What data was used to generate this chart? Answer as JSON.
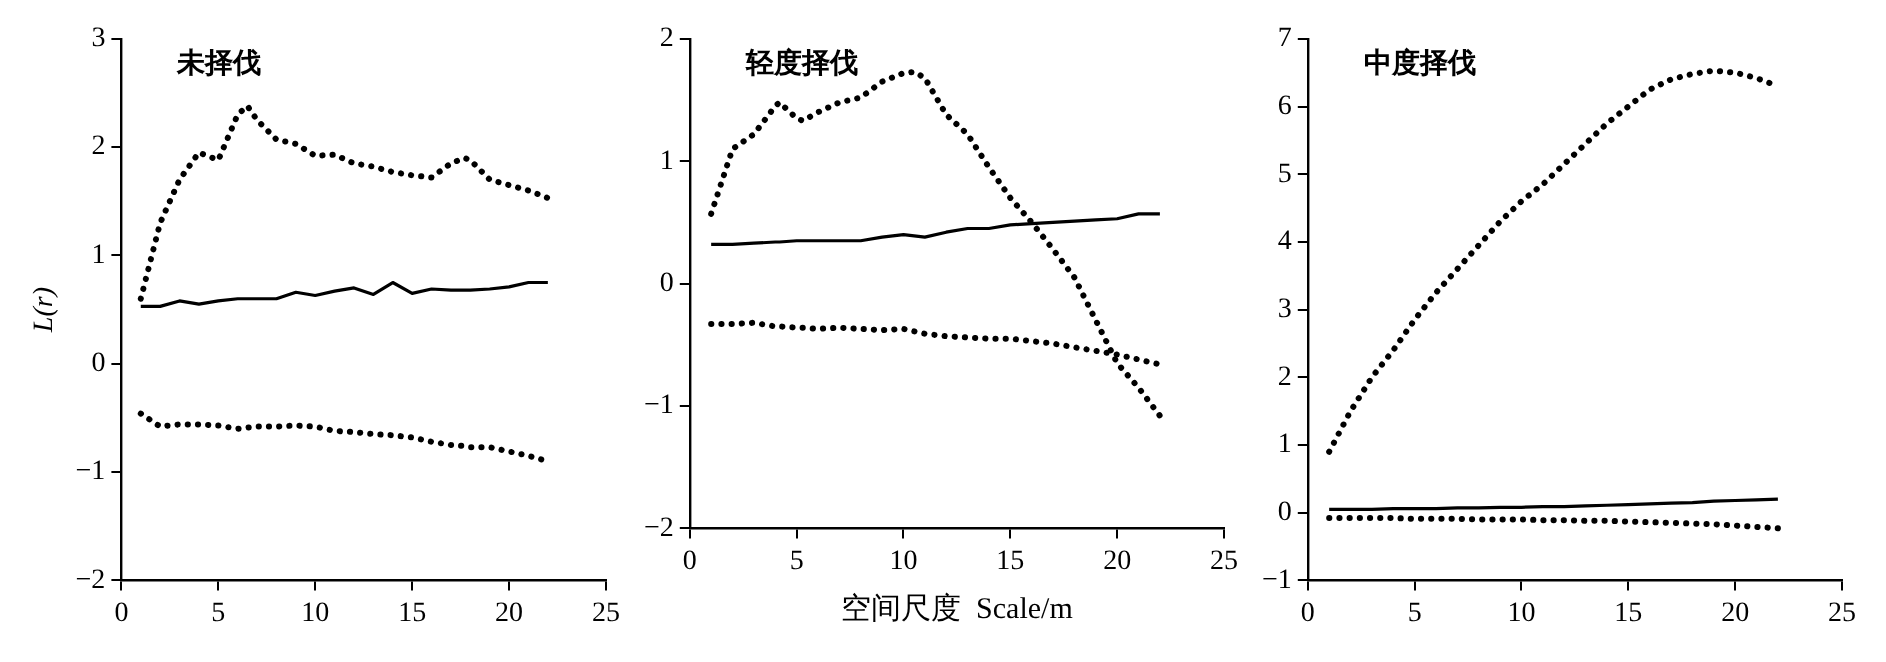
{
  "chart_data": [
    {
      "type": "line",
      "title": "未择伐",
      "ylabel": "L(r)",
      "x": [
        1,
        2,
        3,
        4,
        5,
        6,
        6.5,
        7,
        8,
        9,
        10,
        11,
        12,
        13,
        14,
        15,
        16,
        17,
        17.7,
        18,
        19,
        20,
        21,
        22
      ],
      "xlim": [
        0,
        25
      ],
      "xticks": [
        0,
        5,
        10,
        15,
        20,
        25
      ],
      "ylim": [
        -2,
        3
      ],
      "yticks": [
        -2,
        -1,
        0,
        1,
        2,
        3
      ],
      "grid": false,
      "legend": false,
      "marker": "none",
      "series": [
        {
          "color": "#000000",
          "line_style": "dotted",
          "values": [
            0.6,
            1.3,
            1.7,
            1.95,
            1.88,
            2.3,
            2.38,
            2.25,
            2.07,
            2.03,
            1.92,
            1.93,
            1.85,
            1.82,
            1.77,
            1.74,
            1.72,
            1.85,
            1.9,
            1.88,
            1.7,
            1.65,
            1.6,
            1.53
          ]
        },
        {
          "color": "#000000",
          "line_style": "solid",
          "values": [
            0.53,
            0.53,
            0.58,
            0.55,
            0.58,
            0.6,
            0.6,
            0.6,
            0.6,
            0.66,
            0.63,
            0.67,
            0.7,
            0.64,
            0.75,
            0.65,
            0.69,
            0.68,
            0.68,
            0.68,
            0.69,
            0.71,
            0.75,
            0.75
          ]
        },
        {
          "color": "#000000",
          "line_style": "dotted",
          "values": [
            -0.46,
            -0.58,
            -0.56,
            -0.56,
            -0.57,
            -0.6,
            -0.59,
            -0.58,
            -0.58,
            -0.57,
            -0.58,
            -0.62,
            -0.63,
            -0.65,
            -0.66,
            -0.68,
            -0.72,
            -0.75,
            -0.76,
            -0.77,
            -0.77,
            -0.81,
            -0.85,
            -0.9
          ]
        }
      ]
    },
    {
      "type": "line",
      "title": "轻度择伐",
      "xlabel": "空间尺度  Scale/m",
      "x": [
        1,
        2,
        3,
        4,
        4.2,
        5,
        5.3,
        6,
        7,
        8,
        9,
        10,
        10.5,
        11,
        12,
        13,
        14,
        15,
        16,
        17,
        18,
        19,
        20,
        21,
        22
      ],
      "xlim": [
        0,
        25
      ],
      "xticks": [
        0,
        5,
        10,
        15,
        20,
        25
      ],
      "ylim": [
        -2,
        2
      ],
      "yticks": [
        -2,
        -1,
        0,
        1,
        2
      ],
      "grid": false,
      "legend": false,
      "marker": "none",
      "series": [
        {
          "color": "#000000",
          "line_style": "dotted",
          "values": [
            0.57,
            1.1,
            1.22,
            1.45,
            1.48,
            1.35,
            1.33,
            1.4,
            1.48,
            1.52,
            1.65,
            1.72,
            1.73,
            1.68,
            1.38,
            1.22,
            0.95,
            0.7,
            0.5,
            0.28,
            0.05,
            -0.3,
            -0.65,
            -0.85,
            -1.08
          ]
        },
        {
          "color": "#000000",
          "line_style": "solid",
          "values": [
            0.32,
            0.32,
            0.33,
            0.34,
            0.34,
            0.35,
            0.35,
            0.35,
            0.35,
            0.35,
            0.38,
            0.4,
            0.39,
            0.38,
            0.42,
            0.45,
            0.45,
            0.48,
            0.49,
            0.5,
            0.51,
            0.52,
            0.53,
            0.57,
            0.57
          ]
        },
        {
          "color": "#000000",
          "line_style": "dotted",
          "values": [
            -0.33,
            -0.33,
            -0.32,
            -0.35,
            -0.35,
            -0.36,
            -0.36,
            -0.37,
            -0.36,
            -0.37,
            -0.38,
            -0.37,
            -0.39,
            -0.41,
            -0.43,
            -0.44,
            -0.45,
            -0.45,
            -0.47,
            -0.49,
            -0.52,
            -0.55,
            -0.58,
            -0.62,
            -0.66
          ]
        }
      ]
    },
    {
      "type": "line",
      "title": "中度择伐",
      "x": [
        1,
        2,
        3,
        4,
        5,
        6,
        7,
        8,
        9,
        10,
        11,
        12,
        13,
        14,
        15,
        16,
        17,
        18,
        19,
        20,
        21,
        22
      ],
      "xlim": [
        0,
        25
      ],
      "xticks": [
        0,
        5,
        10,
        15,
        20,
        25
      ],
      "ylim": [
        -1,
        7
      ],
      "yticks": [
        -1,
        0,
        1,
        2,
        3,
        4,
        5,
        6,
        7
      ],
      "grid": false,
      "legend": false,
      "marker": "none",
      "series": [
        {
          "color": "#000000",
          "line_style": "dotted",
          "values": [
            0.9,
            1.5,
            2.0,
            2.4,
            2.85,
            3.25,
            3.6,
            3.95,
            4.3,
            4.6,
            4.85,
            5.15,
            5.45,
            5.75,
            6.0,
            6.25,
            6.4,
            6.48,
            6.53,
            6.5,
            6.42,
            6.3
          ]
        },
        {
          "color": "#000000",
          "line_style": "solid",
          "values": [
            0.05,
            0.05,
            0.05,
            0.06,
            0.06,
            0.06,
            0.07,
            0.07,
            0.08,
            0.08,
            0.09,
            0.09,
            0.1,
            0.11,
            0.12,
            0.13,
            0.14,
            0.15,
            0.17,
            0.18,
            0.19,
            0.2
          ]
        },
        {
          "color": "#000000",
          "line_style": "dotted",
          "values": [
            -0.08,
            -0.08,
            -0.08,
            -0.08,
            -0.09,
            -0.09,
            -0.09,
            -0.1,
            -0.1,
            -0.1,
            -0.11,
            -0.11,
            -0.12,
            -0.12,
            -0.13,
            -0.14,
            -0.15,
            -0.16,
            -0.17,
            -0.19,
            -0.21,
            -0.23
          ]
        }
      ]
    }
  ]
}
